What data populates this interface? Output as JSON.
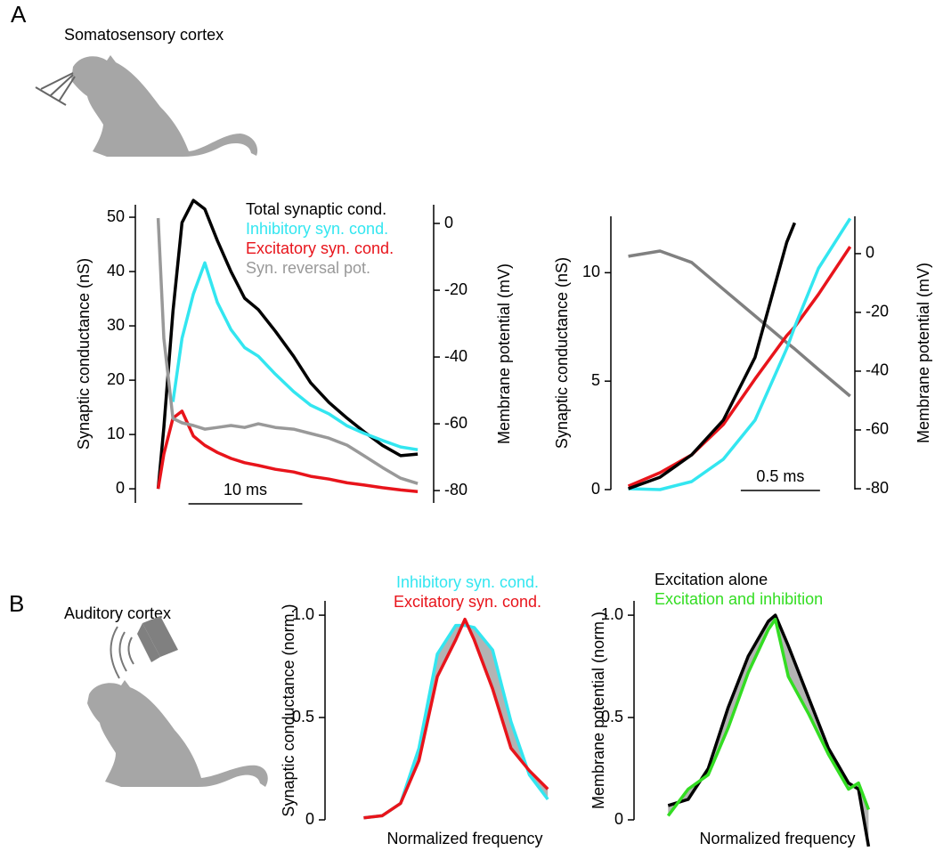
{
  "panel_labels": [
    "A",
    "B"
  ],
  "region_labels": [
    "Somatosensory cortex",
    "Auditory cortex"
  ],
  "chart_data": [
    {
      "type": "line",
      "ylabel": "Synaptic conductance (nS)",
      "y2label": "Membrane potential (mV)",
      "x": [
        0,
        0.5,
        1.3,
        2.1,
        3.1,
        4.1,
        5.2,
        6.4,
        7.6,
        8.8,
        10.3,
        11.9,
        13.4,
        15,
        16.6,
        18.1,
        19.7,
        21.3,
        22.8
      ],
      "xlim": [
        -2,
        24.2
      ],
      "ylim": [
        -2.6,
        52.3
      ],
      "yticks": [
        0,
        10,
        20,
        30,
        40,
        50
      ],
      "y2lim": [
        -83.7,
        5.6
      ],
      "y2ticks": [
        0,
        -20,
        -40,
        -60,
        -80
      ],
      "scalebar": {
        "value": 10,
        "label": "10 ms"
      },
      "series": [
        {
          "name": "Total synaptic cond.",
          "color": "#000000",
          "values": [
            0,
            11.3,
            32.6,
            49.0,
            53.1,
            51.5,
            45.7,
            40.0,
            35.1,
            33.0,
            29.0,
            24.4,
            19.5,
            15.9,
            13.0,
            10.5,
            8.0,
            6.1,
            6.4
          ]
        },
        {
          "name": "Inhibitory syn. cond.",
          "color": "#33e6f0",
          "values": [
            null,
            null,
            16,
            27.7,
            35.9,
            41.6,
            34.3,
            29.3,
            26,
            24.4,
            21.1,
            17.9,
            15.4,
            13.8,
            11.6,
            10.2,
            8.9,
            7.7,
            7.2
          ]
        },
        {
          "name": "Excitatory syn. cond.",
          "color": "#e8141b",
          "values": [
            0,
            6.4,
            13,
            14.3,
            9.7,
            8,
            6.7,
            5.6,
            4.8,
            4.3,
            3.6,
            3.1,
            2.3,
            1.8,
            1.1,
            0.7,
            0.2,
            -0.2,
            -0.5
          ]
        },
        {
          "name": "Syn. reversal pot.",
          "color": "#999999",
          "axis": "y2",
          "values": [
            1.6,
            -34.4,
            -58.4,
            -59.7,
            -60.5,
            -61.6,
            -61.1,
            -60.5,
            -61.1,
            -60,
            -61.1,
            -61.6,
            -62.9,
            -64.3,
            -66.4,
            -69.6,
            -73.1,
            -76.3,
            -77.9
          ]
        }
      ]
    },
    {
      "type": "line",
      "ylabel": "Synaptic conductance (nS)",
      "y2label": "Membrane potential (mV)",
      "x": [
        0,
        0.2,
        0.4,
        0.6,
        0.8,
        1.0,
        1.05,
        1.2,
        1.4
      ],
      "xlim": [
        -0.11,
        1.43
      ],
      "ylim": [
        0,
        12.6
      ],
      "yticks": [
        0,
        5,
        10
      ],
      "y2lim": [
        -80.3,
        12.7
      ],
      "y2ticks": [
        0,
        -20,
        -40,
        -60,
        -80
      ],
      "scalebar": {
        "value": 0.5,
        "label": "0.5 ms"
      },
      "series": [
        {
          "color": "#808080",
          "axis": "y2",
          "values": [
            -0.9,
            0.9,
            -3,
            -12.1,
            -21.2,
            -30.3,
            -32.4,
            -39.4,
            -48.5
          ]
        },
        {
          "color": "#e8141b",
          "values": [
            0.16,
            0.78,
            1.6,
            3.0,
            5.1,
            7.1,
            7.5,
            9.0,
            11.2
          ]
        },
        {
          "color": "#33e6f0",
          "values": [
            0.04,
            0,
            0.37,
            1.4,
            3.2,
            6.5,
            7.5,
            10.2,
            12.5
          ]
        },
        {
          "color": "#000000",
          "values": [
            0.04,
            0.57,
            1.6,
            3.2,
            6.1,
            11.4,
            12.3,
            null,
            null
          ]
        }
      ]
    },
    {
      "type": "line",
      "ylabel": "Synaptic conductance (norm.)",
      "xlabel": "Normalized frequency",
      "x": [
        0,
        2,
        4,
        6,
        8,
        10,
        11,
        12,
        14,
        16,
        18,
        20
      ],
      "xlim": [
        -4.2,
        22.4
      ],
      "ylim": [
        0,
        1.07
      ],
      "yticks": [
        0,
        0.5,
        {
          "value": 1,
          "label": "1.0"
        }
      ],
      "fill_between": true,
      "series": [
        {
          "name": "Inhibitory syn. cond.",
          "color": "#33e6f0",
          "values": [
            0.01,
            0.02,
            0.08,
            0.35,
            0.81,
            0.95,
            0.95,
            0.94,
            0.83,
            0.48,
            0.22,
            0.1
          ]
        },
        {
          "name": "Excitatory syn. cond.",
          "color": "#e8141b",
          "values": [
            0.01,
            0.02,
            0.08,
            0.29,
            0.7,
            0.88,
            0.98,
            0.88,
            0.64,
            0.35,
            0.24,
            0.15
          ]
        }
      ]
    },
    {
      "type": "line",
      "ylabel": "Membrane potential (norm.)",
      "xlabel": "Normalized frequency",
      "x": [
        0,
        2,
        4,
        6,
        8,
        10,
        10.7,
        12,
        14,
        16,
        18,
        19,
        20
      ],
      "xlim": [
        -3.4,
        21.3
      ],
      "ylim": [
        0,
        1.07
      ],
      "yticks": [
        0,
        0.5,
        {
          "value": 1,
          "label": "1.0"
        }
      ],
      "fill_between": true,
      "series": [
        {
          "name": "Excitation alone",
          "color": "#000000",
          "values": [
            0.07,
            0.1,
            0.25,
            0.55,
            0.8,
            0.97,
            1.0,
            0.85,
            0.6,
            0.35,
            0.18,
            0.15,
            -0.13
          ]
        },
        {
          "name": "Excitation and inhibition",
          "color": "#33dd22",
          "values": [
            0.02,
            0.15,
            0.22,
            0.45,
            0.72,
            0.93,
            0.98,
            0.7,
            0.52,
            0.32,
            0.15,
            0.18,
            0.05
          ]
        }
      ]
    }
  ]
}
